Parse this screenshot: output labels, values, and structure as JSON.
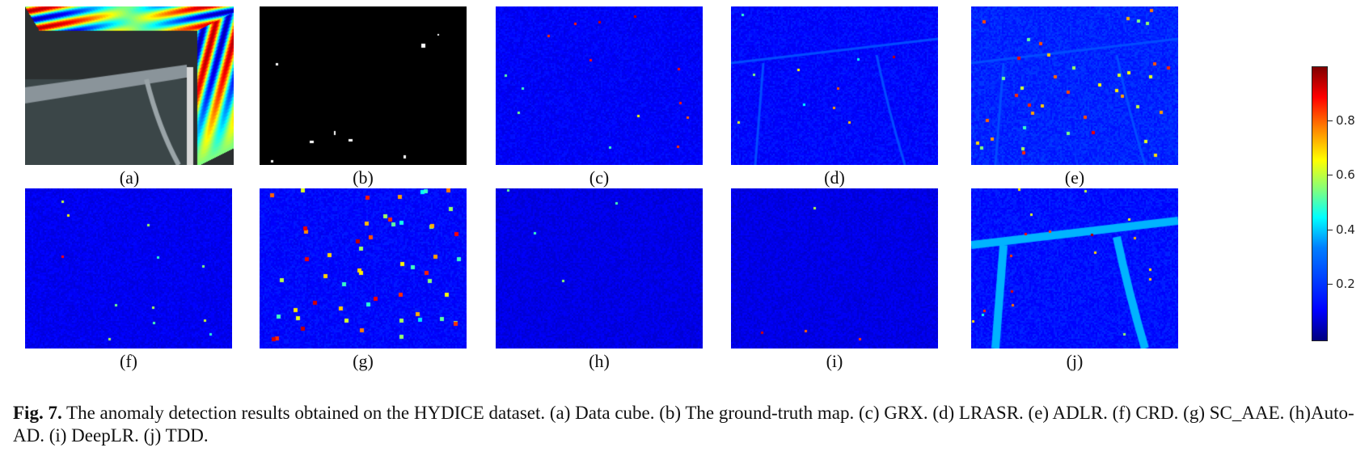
{
  "panels": [
    {
      "label": "(a)",
      "type": "cube"
    },
    {
      "label": "(b)",
      "type": "gt"
    },
    {
      "label": "(c)",
      "type": "map",
      "style": "faint"
    },
    {
      "label": "(d)",
      "type": "map",
      "style": "faint-lines"
    },
    {
      "label": "(e)",
      "type": "map",
      "style": "busy"
    },
    {
      "label": "(f)",
      "type": "map",
      "style": "sparse"
    },
    {
      "label": "(g)",
      "type": "map",
      "style": "blobs"
    },
    {
      "label": "(h)",
      "type": "map",
      "style": "very-sparse"
    },
    {
      "label": "(i)",
      "type": "map",
      "style": "very-sparse"
    },
    {
      "label": "(j)",
      "type": "map",
      "style": "roads"
    }
  ],
  "colorbar": {
    "colormap": "jet",
    "range": [
      0,
      1
    ],
    "ticks": [
      {
        "value": 0.2,
        "label": "0.2"
      },
      {
        "value": 0.4,
        "label": "0.4"
      },
      {
        "value": 0.6,
        "label": "0.6"
      },
      {
        "value": 0.8,
        "label": "0.8"
      }
    ]
  },
  "caption": {
    "figure_label": "Fig. 7.",
    "text": " The anomaly detection results obtained on the HYDICE dataset. (a) Data cube. (b) The ground-truth map. (c) GRX. (d) LRASR. (e) ADLR. (f) CRD. (g) SC_AAE. (h)Auto-AD. (i) DeepLR. (j) TDD."
  }
}
